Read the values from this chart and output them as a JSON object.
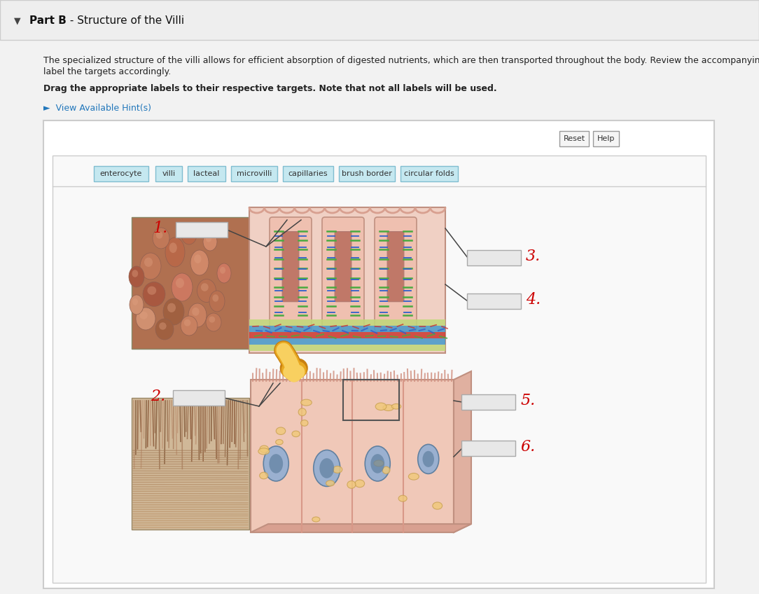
{
  "title_bold": "Part B",
  "title_rest": " - Structure of the Villi",
  "description_line1": "The specialized structure of the villi allows for efficient absorption of digested nutrients, which are then transported throughout the body. Review the accompanying figure and",
  "description_line2": "label the targets accordingly.",
  "instruction": "Drag the appropriate labels to their respective targets. Note that not all labels will be used.",
  "hint_text": "►  View Available Hint(s)",
  "labels": [
    "enterocyte",
    "villi",
    "lacteal",
    "microvilli",
    "capillaries",
    "brush border",
    "circular folds"
  ],
  "numbers": [
    "1.",
    "2.",
    "3.",
    "4.",
    "5.",
    "6."
  ],
  "bg_page": "#f2f2f2",
  "bg_white": "#ffffff",
  "bg_header": "#eeeeee",
  "border_color": "#cccccc",
  "border_dark": "#999999",
  "label_bg": "#c5e8f0",
  "label_border": "#80bdd0",
  "number_color": "#cc0000",
  "hint_color": "#2277bb",
  "box_bg": "#e8e8e8",
  "box_border": "#aaaaaa",
  "button_bg": "#f5f5f5",
  "button_border": "#999999",
  "text_color": "#222222",
  "title_area_bg": "#eeeeee",
  "inner_bg": "#f9f9f9",
  "villi_pink_light": "#f5d0c0",
  "villi_pink_mid": "#e8b0a0",
  "villi_pink_dark": "#d89080",
  "villi_inner": "#c87070",
  "green_line": "#4aaa40",
  "blue_line": "#3060cc",
  "red_line": "#cc3030",
  "orange_arrow": "#e8a820",
  "orange_arrow_dark": "#c88010",
  "sem_brown1": "#c08060",
  "sem_brown2": "#a06040",
  "sem_brown3": "#d09070",
  "lower_pink": "#f0c0b0",
  "lower_cell_border": "#d89888",
  "nucleus_blue": "#9ab0d0",
  "nucleus_dark": "#6080a0"
}
